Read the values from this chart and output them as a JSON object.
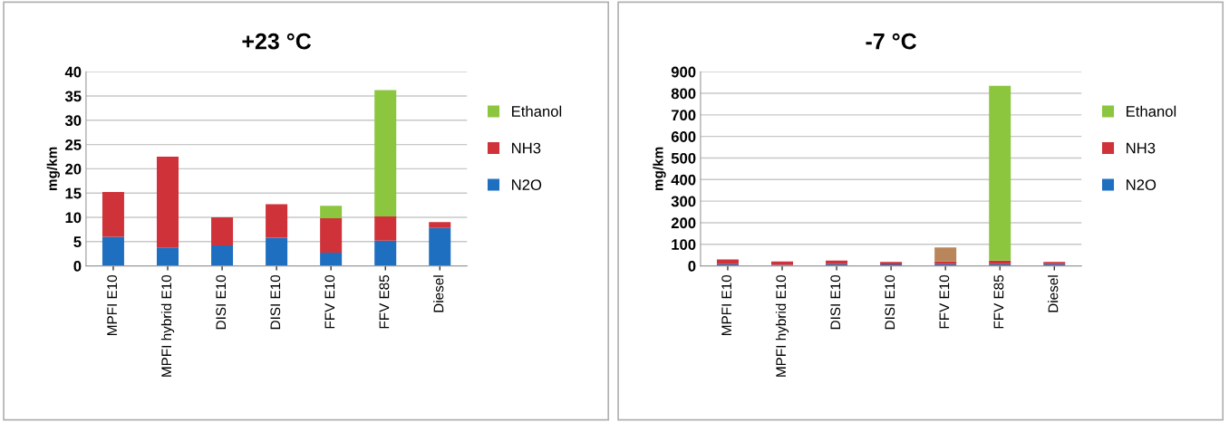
{
  "chart_data": [
    {
      "type": "bar",
      "title": "+23 °C",
      "ylabel": "mg/km",
      "stacked": true,
      "grid": "y",
      "legend": "right",
      "categories": [
        "MPFI E10",
        "MPFI hybrid E10",
        "DISI E10",
        "DISI E10",
        "FFV E10",
        "FFV E85",
        "Diesel"
      ],
      "ylim": [
        0,
        40
      ],
      "yticks": [
        0,
        5,
        10,
        15,
        20,
        25,
        30,
        35,
        40
      ],
      "series": [
        {
          "name": "N2O",
          "color": "#1f6fc0",
          "values": [
            6,
            3.8,
            4.2,
            5.8,
            2.7,
            5.2,
            7.8
          ]
        },
        {
          "name": "NH3",
          "color": "#d0323a",
          "values": [
            9.2,
            18.7,
            5.8,
            6.9,
            7.1,
            5.0,
            1.2
          ]
        },
        {
          "name": "Ethanol",
          "color": "#8cc63f",
          "values": [
            null,
            null,
            null,
            null,
            2.6,
            26,
            null
          ]
        }
      ]
    },
    {
      "type": "bar",
      "title": "-7 °C",
      "ylabel": "mg/km",
      "stacked": true,
      "grid": "y",
      "legend": "right",
      "categories": [
        "MPFI E10",
        "MPFI hybrid E10",
        "DISI E10",
        "DISI E10",
        "FFV E10",
        "FFV E85",
        "Diesel"
      ],
      "ylim": [
        0,
        900
      ],
      "yticks": [
        0,
        100,
        200,
        300,
        400,
        500,
        600,
        700,
        800,
        900
      ],
      "series": [
        {
          "name": "N2O",
          "color": "#1f6fc0",
          "values": [
            8,
            5,
            8,
            7,
            8,
            8,
            8
          ]
        },
        {
          "name": "NH3",
          "color": "#d0323a",
          "values": [
            22,
            15,
            17,
            11,
            12,
            17,
            10
          ]
        },
        {
          "name": "Ethanol",
          "color": "#8cc63f",
          "colors": [
            null,
            null,
            null,
            null,
            "#b8865a",
            "#8cc63f",
            null
          ],
          "values": [
            null,
            null,
            null,
            null,
            65,
            810,
            null
          ]
        }
      ]
    }
  ]
}
